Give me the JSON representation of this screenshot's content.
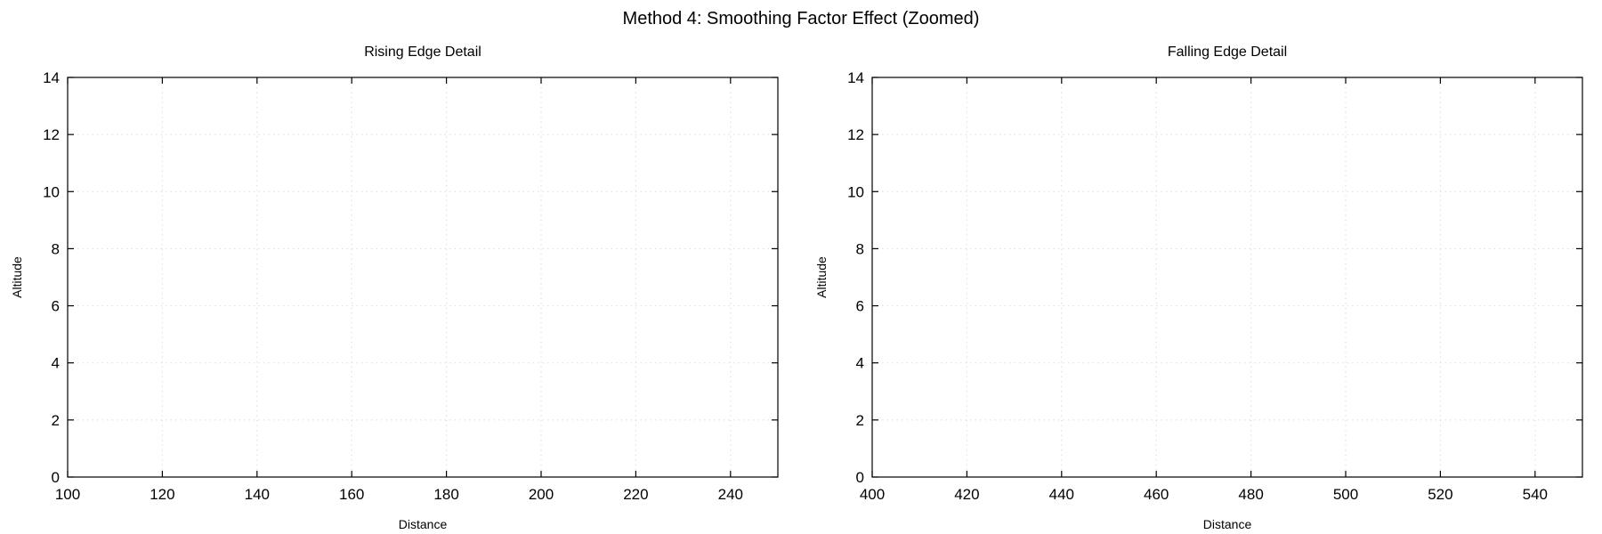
{
  "figure": {
    "title": "Method 4: Smoothing Factor Effect (Zoomed)",
    "axes_color": "#000000",
    "grid_color": "#dddddd"
  },
  "chart_data": [
    {
      "type": "line",
      "title": "Rising Edge Detail",
      "xlabel": "Distance",
      "ylabel": "Altitude",
      "xlim": [
        100,
        250
      ],
      "ylim": [
        0,
        14
      ],
      "xticks": [
        100,
        120,
        140,
        160,
        180,
        200,
        220,
        240
      ],
      "yticks": [
        0,
        2,
        4,
        6,
        8,
        10,
        12,
        14
      ],
      "grid": true,
      "series": []
    },
    {
      "type": "line",
      "title": "Falling Edge Detail",
      "xlabel": "Distance",
      "ylabel": "Altitude",
      "xlim": [
        400,
        550
      ],
      "ylim": [
        0,
        14
      ],
      "xticks": [
        400,
        420,
        440,
        460,
        480,
        500,
        520,
        540
      ],
      "yticks": [
        0,
        2,
        4,
        6,
        8,
        10,
        12,
        14
      ],
      "grid": true,
      "series": []
    }
  ]
}
